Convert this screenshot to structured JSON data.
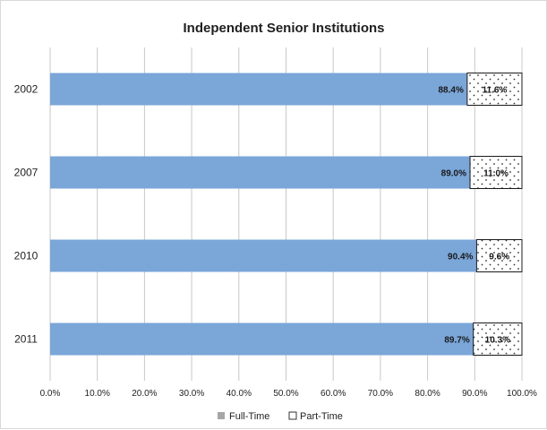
{
  "chart_data": {
    "type": "bar",
    "orientation": "horizontal",
    "stacked": true,
    "title": "Independent Senior Institutions",
    "categories": [
      "2002",
      "2007",
      "2010",
      "2011"
    ],
    "series": [
      {
        "name": "Full-Time",
        "values": [
          88.4,
          89.0,
          90.4,
          89.7
        ],
        "labels": [
          "88.4%",
          "89.0%",
          "90.4%",
          "89.7%"
        ]
      },
      {
        "name": "Part-Time",
        "values": [
          11.6,
          11.0,
          9.6,
          10.3
        ],
        "labels": [
          "11.6%",
          "11.0%",
          "9.6%",
          "10.3%"
        ]
      }
    ],
    "x_ticks": [
      "0.0%",
      "10.0%",
      "20.0%",
      "30.0%",
      "40.0%",
      "50.0%",
      "60.0%",
      "70.0%",
      "80.0%",
      "90.0%",
      "100.0%"
    ],
    "xlim": [
      0,
      100
    ],
    "grid": true,
    "legend_position": "bottom",
    "colors": {
      "full_time": "#7aa6d8",
      "part_time": "#ffffff",
      "grid": "#c8c8c8"
    }
  }
}
